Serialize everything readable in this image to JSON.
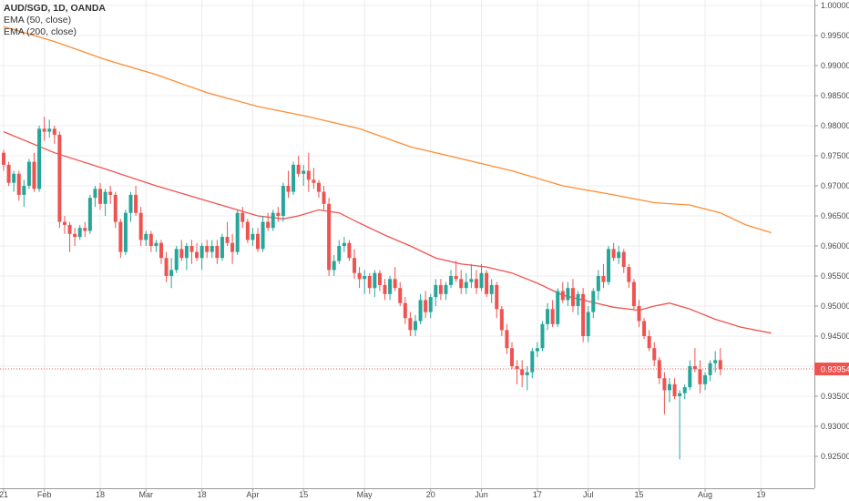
{
  "legend": {
    "title": "AUD/SGD, 1D, OANDA",
    "ema50": "EMA (50, close)",
    "ema200": "EMA (200, close)"
  },
  "colors": {
    "up": "#26a69a",
    "down": "#ef5350",
    "ema50": "#ef5350",
    "ema200": "#ff8c33",
    "grid": "#ececec",
    "price_line": "#ef5350",
    "axis_text": "#4a4a4a"
  },
  "chart_data": {
    "type": "candlestick",
    "symbol": "AUD/SGD",
    "timeframe": "1D",
    "exchange": "OANDA",
    "ylim": [
      0.921,
      1.0
    ],
    "y_ticks": [
      "1.00000",
      "0.99500",
      "0.99000",
      "0.98500",
      "0.98000",
      "0.97500",
      "0.97000",
      "0.96500",
      "0.96000",
      "0.95500",
      "0.95000",
      "0.94500",
      "0.94000",
      "0.93500",
      "0.93000",
      "0.92500"
    ],
    "x_ticks": [
      {
        "label": "21",
        "index": 0
      },
      {
        "label": "Feb",
        "index": 8
      },
      {
        "label": "18",
        "index": 19
      },
      {
        "label": "Mar",
        "index": 28
      },
      {
        "label": "18",
        "index": 39
      },
      {
        "label": "Apr",
        "index": 49
      },
      {
        "label": "15",
        "index": 59
      },
      {
        "label": "May",
        "index": 71
      },
      {
        "label": "20",
        "index": 84
      },
      {
        "label": "Jun",
        "index": 94
      },
      {
        "label": "17",
        "index": 105
      },
      {
        "label": "Jul",
        "index": 115
      },
      {
        "label": "15",
        "index": 125
      },
      {
        "label": "Aug",
        "index": 138
      },
      {
        "label": "19",
        "index": 149
      }
    ],
    "last_price": "0.93954",
    "last_value": 0.93954,
    "candles": [
      [
        0.9755,
        0.976,
        0.9725,
        0.9735
      ],
      [
        0.9735,
        0.974,
        0.97,
        0.9705
      ],
      [
        0.9705,
        0.9725,
        0.969,
        0.972
      ],
      [
        0.972,
        0.9725,
        0.9675,
        0.9685
      ],
      [
        0.9685,
        0.971,
        0.9665,
        0.97
      ],
      [
        0.97,
        0.9745,
        0.9695,
        0.974
      ],
      [
        0.974,
        0.9755,
        0.969,
        0.9695
      ],
      [
        0.9695,
        0.98,
        0.969,
        0.9795
      ],
      [
        0.9795,
        0.9815,
        0.9775,
        0.979
      ],
      [
        0.979,
        0.981,
        0.978,
        0.9795
      ],
      [
        0.9795,
        0.98,
        0.977,
        0.9785
      ],
      [
        0.9785,
        0.979,
        0.963,
        0.964
      ],
      [
        0.964,
        0.965,
        0.962,
        0.9635
      ],
      [
        0.9635,
        0.964,
        0.959,
        0.962
      ],
      [
        0.962,
        0.963,
        0.96,
        0.9615
      ],
      [
        0.9615,
        0.9635,
        0.961,
        0.963
      ],
      [
        0.963,
        0.964,
        0.9615,
        0.9625
      ],
      [
        0.9625,
        0.9685,
        0.962,
        0.968
      ],
      [
        0.968,
        0.97,
        0.9665,
        0.9695
      ],
      [
        0.9695,
        0.9705,
        0.966,
        0.967
      ],
      [
        0.967,
        0.9695,
        0.965,
        0.969
      ],
      [
        0.969,
        0.97,
        0.967,
        0.9685
      ],
      [
        0.9685,
        0.969,
        0.963,
        0.964
      ],
      [
        0.964,
        0.9645,
        0.958,
        0.959
      ],
      [
        0.959,
        0.966,
        0.9585,
        0.9655
      ],
      [
        0.9655,
        0.969,
        0.964,
        0.9685
      ],
      [
        0.9685,
        0.97,
        0.965,
        0.9655
      ],
      [
        0.9655,
        0.9665,
        0.96,
        0.961
      ],
      [
        0.961,
        0.9625,
        0.96,
        0.962
      ],
      [
        0.962,
        0.9625,
        0.959,
        0.96
      ],
      [
        0.96,
        0.961,
        0.959,
        0.9605
      ],
      [
        0.9605,
        0.961,
        0.957,
        0.958
      ],
      [
        0.958,
        0.959,
        0.954,
        0.955
      ],
      [
        0.955,
        0.958,
        0.953,
        0.956
      ],
      [
        0.956,
        0.96,
        0.9555,
        0.9595
      ],
      [
        0.9595,
        0.961,
        0.9575,
        0.958
      ],
      [
        0.958,
        0.9605,
        0.956,
        0.96
      ],
      [
        0.96,
        0.961,
        0.957,
        0.959
      ],
      [
        0.959,
        0.9605,
        0.9575,
        0.958
      ],
      [
        0.958,
        0.9605,
        0.956,
        0.96
      ],
      [
        0.96,
        0.961,
        0.958,
        0.959
      ],
      [
        0.959,
        0.961,
        0.958,
        0.96
      ],
      [
        0.96,
        0.961,
        0.957,
        0.958
      ],
      [
        0.958,
        0.962,
        0.9575,
        0.9615
      ],
      [
        0.9615,
        0.964,
        0.96,
        0.9605
      ],
      [
        0.9605,
        0.962,
        0.957,
        0.959
      ],
      [
        0.959,
        0.966,
        0.9585,
        0.9655
      ],
      [
        0.9655,
        0.9665,
        0.963,
        0.964
      ],
      [
        0.964,
        0.9645,
        0.9605,
        0.961
      ],
      [
        0.961,
        0.963,
        0.96,
        0.962
      ],
      [
        0.962,
        0.963,
        0.959,
        0.9595
      ],
      [
        0.9595,
        0.965,
        0.959,
        0.964
      ],
      [
        0.964,
        0.9655,
        0.9625,
        0.963
      ],
      [
        0.963,
        0.966,
        0.9625,
        0.9655
      ],
      [
        0.9655,
        0.9665,
        0.964,
        0.965
      ],
      [
        0.965,
        0.9705,
        0.964,
        0.97
      ],
      [
        0.97,
        0.9725,
        0.968,
        0.969
      ],
      [
        0.969,
        0.974,
        0.9685,
        0.9735
      ],
      [
        0.9735,
        0.975,
        0.9715,
        0.972
      ],
      [
        0.972,
        0.9735,
        0.97,
        0.9725
      ],
      [
        0.9725,
        0.9755,
        0.969,
        0.971
      ],
      [
        0.971,
        0.973,
        0.9695,
        0.9705
      ],
      [
        0.9705,
        0.971,
        0.968,
        0.969
      ],
      [
        0.969,
        0.97,
        0.966,
        0.967
      ],
      [
        0.967,
        0.968,
        0.955,
        0.956
      ],
      [
        0.956,
        0.9585,
        0.955,
        0.9575
      ],
      [
        0.9575,
        0.961,
        0.957,
        0.96
      ],
      [
        0.96,
        0.9615,
        0.959,
        0.9605
      ],
      [
        0.9605,
        0.961,
        0.9575,
        0.958
      ],
      [
        0.958,
        0.9595,
        0.9545,
        0.9555
      ],
      [
        0.9555,
        0.9565,
        0.953,
        0.9545
      ],
      [
        0.9545,
        0.956,
        0.952,
        0.955
      ],
      [
        0.955,
        0.9555,
        0.952,
        0.953
      ],
      [
        0.953,
        0.956,
        0.9515,
        0.9555
      ],
      [
        0.9555,
        0.956,
        0.9525,
        0.9535
      ],
      [
        0.9535,
        0.9545,
        0.951,
        0.952
      ],
      [
        0.952,
        0.955,
        0.951,
        0.9545
      ],
      [
        0.9545,
        0.9565,
        0.9525,
        0.953
      ],
      [
        0.953,
        0.954,
        0.95,
        0.9505
      ],
      [
        0.9505,
        0.9515,
        0.947,
        0.948
      ],
      [
        0.948,
        0.949,
        0.945,
        0.946
      ],
      [
        0.946,
        0.9485,
        0.945,
        0.9475
      ],
      [
        0.9475,
        0.952,
        0.947,
        0.951
      ],
      [
        0.951,
        0.9525,
        0.948,
        0.949
      ],
      [
        0.949,
        0.952,
        0.948,
        0.9515
      ],
      [
        0.9515,
        0.9545,
        0.95,
        0.9535
      ],
      [
        0.9535,
        0.9545,
        0.951,
        0.952
      ],
      [
        0.952,
        0.954,
        0.951,
        0.9535
      ],
      [
        0.9535,
        0.956,
        0.953,
        0.955
      ],
      [
        0.955,
        0.9575,
        0.954,
        0.9545
      ],
      [
        0.9545,
        0.956,
        0.952,
        0.953
      ],
      [
        0.953,
        0.9555,
        0.952,
        0.954
      ],
      [
        0.954,
        0.957,
        0.953,
        0.9545
      ],
      [
        0.9545,
        0.956,
        0.952,
        0.953
      ],
      [
        0.953,
        0.957,
        0.9525,
        0.9555
      ],
      [
        0.9555,
        0.956,
        0.9515,
        0.952
      ],
      [
        0.952,
        0.9545,
        0.9505,
        0.9535
      ],
      [
        0.9535,
        0.954,
        0.948,
        0.9495
      ],
      [
        0.9495,
        0.95,
        0.945,
        0.946
      ],
      [
        0.946,
        0.947,
        0.942,
        0.943
      ],
      [
        0.943,
        0.944,
        0.9395,
        0.94
      ],
      [
        0.94,
        0.941,
        0.937,
        0.9395
      ],
      [
        0.9395,
        0.941,
        0.9365,
        0.9385
      ],
      [
        0.9385,
        0.94,
        0.936,
        0.939
      ],
      [
        0.939,
        0.943,
        0.938,
        0.9425
      ],
      [
        0.9425,
        0.944,
        0.9415,
        0.943
      ],
      [
        0.943,
        0.9475,
        0.9425,
        0.947
      ],
      [
        0.947,
        0.9505,
        0.946,
        0.9495
      ],
      [
        0.9495,
        0.951,
        0.9465,
        0.947
      ],
      [
        0.947,
        0.953,
        0.9465,
        0.9525
      ],
      [
        0.9525,
        0.954,
        0.9505,
        0.951
      ],
      [
        0.951,
        0.954,
        0.95,
        0.953
      ],
      [
        0.953,
        0.9545,
        0.949,
        0.95
      ],
      [
        0.95,
        0.9525,
        0.9485,
        0.952
      ],
      [
        0.952,
        0.953,
        0.944,
        0.945
      ],
      [
        0.945,
        0.95,
        0.944,
        0.949
      ],
      [
        0.949,
        0.953,
        0.948,
        0.9525
      ],
      [
        0.9525,
        0.956,
        0.951,
        0.955
      ],
      [
        0.955,
        0.957,
        0.953,
        0.954
      ],
      [
        0.954,
        0.96,
        0.9535,
        0.9595
      ],
      [
        0.9595,
        0.9605,
        0.9575,
        0.958
      ],
      [
        0.958,
        0.96,
        0.957,
        0.959
      ],
      [
        0.959,
        0.9595,
        0.9555,
        0.9565
      ],
      [
        0.9565,
        0.957,
        0.953,
        0.954
      ],
      [
        0.954,
        0.9545,
        0.9495,
        0.95
      ],
      [
        0.95,
        0.951,
        0.9465,
        0.9475
      ],
      [
        0.9475,
        0.948,
        0.9445,
        0.945
      ],
      [
        0.945,
        0.946,
        0.9425,
        0.943
      ],
      [
        0.943,
        0.944,
        0.94,
        0.941
      ],
      [
        0.941,
        0.9415,
        0.937,
        0.938
      ],
      [
        0.938,
        0.939,
        0.932,
        0.936
      ],
      [
        0.936,
        0.938,
        0.934,
        0.937
      ],
      [
        0.937,
        0.938,
        0.9345,
        0.935
      ],
      [
        0.935,
        0.936,
        0.9245,
        0.9355
      ],
      [
        0.9355,
        0.937,
        0.9345,
        0.9365
      ],
      [
        0.9365,
        0.941,
        0.936,
        0.94
      ],
      [
        0.94,
        0.943,
        0.939,
        0.9395
      ],
      [
        0.9395,
        0.941,
        0.9355,
        0.937
      ],
      [
        0.937,
        0.939,
        0.936,
        0.9385
      ],
      [
        0.9385,
        0.941,
        0.9375,
        0.9405
      ],
      [
        0.9405,
        0.9425,
        0.939,
        0.941
      ],
      [
        0.941,
        0.943,
        0.9385,
        0.9395
      ]
    ],
    "ema50": [
      [
        0,
        0.979
      ],
      [
        10,
        0.9755
      ],
      [
        20,
        0.9728
      ],
      [
        30,
        0.97
      ],
      [
        40,
        0.9675
      ],
      [
        50,
        0.965
      ],
      [
        55,
        0.9645
      ],
      [
        58,
        0.965
      ],
      [
        62,
        0.966
      ],
      [
        66,
        0.9655
      ],
      [
        70,
        0.9638
      ],
      [
        75,
        0.9618
      ],
      [
        80,
        0.96
      ],
      [
        85,
        0.958
      ],
      [
        90,
        0.957
      ],
      [
        95,
        0.9565
      ],
      [
        100,
        0.9555
      ],
      [
        105,
        0.9538
      ],
      [
        110,
        0.9518
      ],
      [
        115,
        0.9508
      ],
      [
        120,
        0.9498
      ],
      [
        125,
        0.9493
      ],
      [
        128,
        0.95
      ],
      [
        131,
        0.9505
      ],
      [
        135,
        0.9495
      ],
      [
        140,
        0.9478
      ],
      [
        145,
        0.9465
      ],
      [
        151,
        0.9455
      ]
    ],
    "ema200": [
      [
        0,
        0.9965
      ],
      [
        10,
        0.994
      ],
      [
        20,
        0.991
      ],
      [
        30,
        0.9885
      ],
      [
        40,
        0.9855
      ],
      [
        50,
        0.9832
      ],
      [
        60,
        0.9815
      ],
      [
        70,
        0.9795
      ],
      [
        80,
        0.9765
      ],
      [
        90,
        0.9745
      ],
      [
        100,
        0.9725
      ],
      [
        110,
        0.97
      ],
      [
        120,
        0.9685
      ],
      [
        128,
        0.9672
      ],
      [
        135,
        0.9668
      ],
      [
        141,
        0.9655
      ],
      [
        146,
        0.9635
      ],
      [
        151,
        0.9622
      ]
    ]
  }
}
